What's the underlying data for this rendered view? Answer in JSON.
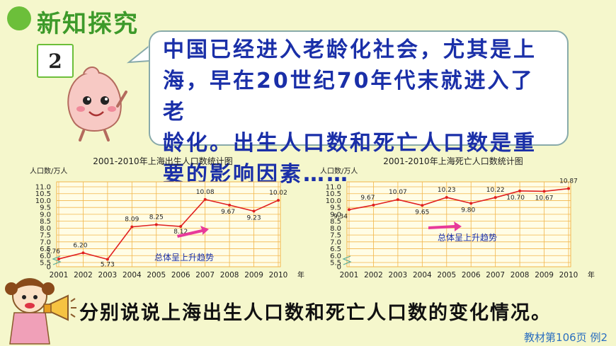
{
  "header": {
    "title": "新知探究"
  },
  "example_number": "2",
  "bubble": {
    "lines": [
      "中国已经进入老龄化社会，尤其是上",
      "海，早在20世纪70年代末就进入了老",
      "龄化。出生人口数和死亡人口数是重",
      "要的影响因素……"
    ]
  },
  "question": "分别说说上海出生人口数和死亡人口数的变化情况。",
  "footnote": "教材第106页 例2",
  "colors": {
    "line": "#e02020",
    "arrow": "#e83a9a",
    "grid": "#f2b64a",
    "plot_bg": "#fffde6",
    "title_green": "#3d9a2a",
    "bubble_text": "#1a2fa8"
  },
  "chart_data": [
    {
      "type": "line",
      "title": "2001-2010年上海出生人口数统计图",
      "ylabel": "人口数/万人",
      "xlabel": "年份",
      "x": [
        "2001",
        "2002",
        "2003",
        "2004",
        "2005",
        "2006",
        "2007",
        "2008",
        "2009",
        "2010"
      ],
      "values": [
        5.76,
        6.2,
        5.73,
        8.09,
        8.25,
        8.12,
        10.08,
        9.67,
        9.23,
        10.02
      ],
      "value_labels": [
        "5.76",
        "6.20",
        "5.73",
        "8.09",
        "8.25",
        "8.12",
        "10.08",
        "9.67",
        "9.23",
        "10.02"
      ],
      "yticks": [
        "0",
        "5.5",
        "6.0",
        "6.5",
        "7.0",
        "7.5",
        "8.0",
        "8.5",
        "9.0",
        "9.5",
        "10.0",
        "10.5",
        "11.0"
      ],
      "ylim": [
        5.5,
        11.0
      ],
      "axis_break": true,
      "grid": true,
      "annotation": "总体呈上升趋势"
    },
    {
      "type": "line",
      "title": "2001-2010年上海死亡人口数统计图",
      "ylabel": "人口数/万人",
      "xlabel": "年份",
      "x": [
        "2001",
        "2002",
        "2003",
        "2004",
        "2005",
        "2006",
        "2007",
        "2008",
        "2009",
        "2010"
      ],
      "values": [
        9.34,
        9.67,
        10.07,
        9.65,
        10.23,
        9.8,
        10.22,
        10.7,
        10.67,
        10.87
      ],
      "value_labels": [
        "9.34",
        "9.67",
        "10.07",
        "9.65",
        "10.23",
        "9.80",
        "10.22",
        "10.70",
        "10.67",
        "10.87"
      ],
      "yticks": [
        "0",
        "5.5",
        "6.0",
        "6.5",
        "7.0",
        "7.5",
        "8.0",
        "8.5",
        "9.0",
        "9.5",
        "10.0",
        "10.5",
        "11.0"
      ],
      "ylim": [
        5.5,
        11.0
      ],
      "axis_break": true,
      "grid": true,
      "annotation": "总体呈上升趋势"
    }
  ]
}
